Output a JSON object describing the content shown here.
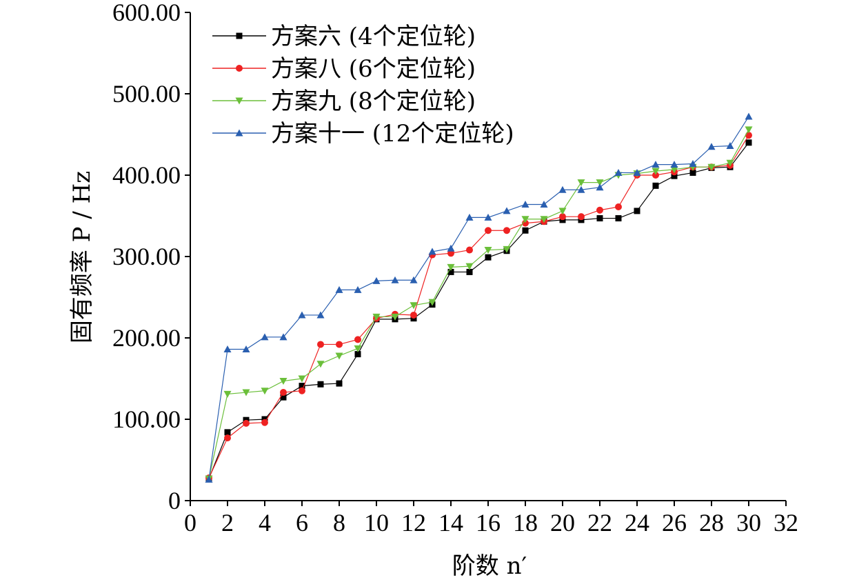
{
  "chart_data": {
    "type": "line",
    "xlabel": "阶数 n′",
    "ylabel": "固有频率 P / Hz",
    "xlim": [
      0,
      32
    ],
    "ylim": [
      0,
      600
    ],
    "x_ticks": [
      0,
      2,
      4,
      6,
      8,
      10,
      12,
      14,
      16,
      18,
      20,
      22,
      24,
      26,
      28,
      30,
      32
    ],
    "x_tick_labels": [
      "0",
      "2",
      "4",
      "6",
      "8",
      "10",
      "12",
      "14",
      "16",
      "18",
      "20",
      "22",
      "24",
      "26",
      "28",
      "30",
      "32"
    ],
    "y_ticks": [
      0,
      100,
      200,
      300,
      400,
      500,
      600
    ],
    "y_tick_labels": [
      "0",
      "100.00",
      "200.00",
      "300.00",
      "400.00",
      "500.00",
      "600.00"
    ],
    "grid": false,
    "legend_position": "top-left",
    "x": [
      1,
      2,
      3,
      4,
      5,
      6,
      7,
      8,
      9,
      10,
      11,
      12,
      13,
      14,
      15,
      16,
      17,
      18,
      19,
      20,
      21,
      22,
      23,
      24,
      25,
      26,
      27,
      28,
      29,
      30
    ],
    "series": [
      {
        "name": "方案六 (4个定位轮)",
        "color": "#000000",
        "marker": "square",
        "values": [
          27,
          84,
          99,
          100,
          127,
          141,
          143,
          144,
          180,
          223,
          223,
          224,
          241,
          281,
          281,
          299,
          307,
          332,
          343,
          345,
          345,
          347,
          347,
          356,
          387,
          399,
          403,
          409,
          410,
          440
        ]
      },
      {
        "name": "方案八 (6个定位轮)",
        "color": "#ee2222",
        "marker": "circle",
        "values": [
          28,
          77,
          95,
          96,
          133,
          135,
          192,
          192,
          198,
          224,
          229,
          228,
          302,
          304,
          308,
          332,
          332,
          341,
          343,
          349,
          349,
          357,
          361,
          400,
          400,
          404,
          410,
          410,
          412,
          449
        ]
      },
      {
        "name": "方案九 (8个定位轮)",
        "color": "#6bbf3a",
        "marker": "triangle-down",
        "values": [
          27,
          131,
          133,
          135,
          147,
          150,
          168,
          178,
          187,
          226,
          226,
          240,
          244,
          287,
          288,
          308,
          309,
          346,
          346,
          356,
          391,
          391,
          400,
          402,
          405,
          407,
          410,
          410,
          415,
          456
        ]
      },
      {
        "name": "方案十一 (12个定位轮)",
        "color": "#2a5fb0",
        "marker": "triangle-up",
        "values": [
          26,
          186,
          186,
          201,
          201,
          228,
          228,
          259,
          259,
          270,
          271,
          271,
          306,
          310,
          348,
          348,
          356,
          364,
          364,
          382,
          382,
          385,
          403,
          403,
          413,
          413,
          414,
          435,
          436,
          472
        ]
      }
    ]
  }
}
